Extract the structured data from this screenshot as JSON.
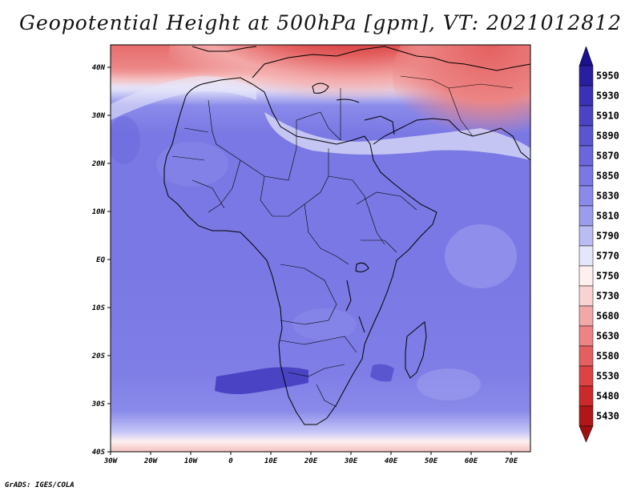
{
  "title": "Geopotential Height at 500hPa [gpm], VT: 2021012812",
  "credit": "GrADS: IGES/COLA",
  "map": {
    "lon_labels": [
      "30W",
      "20W",
      "10W",
      "0",
      "10E",
      "20E",
      "30E",
      "40E",
      "50E",
      "60E",
      "70E"
    ],
    "lat_labels": [
      "40N",
      "30N",
      "20N",
      "10N",
      "EQ",
      "10S",
      "20S",
      "30S",
      "40S"
    ]
  },
  "colorbar": {
    "levels": [
      "5950",
      "5930",
      "5910",
      "5890",
      "5870",
      "5850",
      "5830",
      "5810",
      "5790",
      "5770",
      "5750",
      "5730",
      "5680",
      "5630",
      "5580",
      "5530",
      "5480",
      "5430"
    ],
    "colors": [
      "#2a1ea0",
      "#3a32b4",
      "#4a44c4",
      "#5a56d0",
      "#6a66dc",
      "#7a78e4",
      "#8a8aea",
      "#9c9cee",
      "#bcbcf4",
      "#e6e6fa",
      "#fff0f0",
      "#fad2d2",
      "#f3a8a8",
      "#ec8484",
      "#e46060",
      "#dc4444",
      "#cc2a2a",
      "#b01818"
    ],
    "top_arrow_color": "#1a1090",
    "bottom_arrow_color": "#9e1010"
  }
}
